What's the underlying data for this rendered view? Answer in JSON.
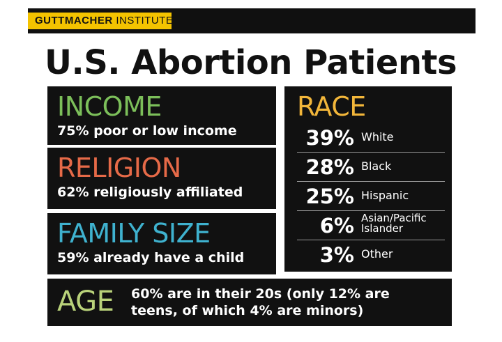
{
  "header": {
    "brand_bold": "GUTTMACHER",
    "brand_light": "INSTITUTE",
    "brand_color": "#f4c300"
  },
  "title": "U.S. Abortion Patients",
  "income": {
    "title": "INCOME",
    "desc": "75% poor or low income",
    "color": "#7cbf5a"
  },
  "religion": {
    "title": "RELIGION",
    "desc": "62% religiously affiliated",
    "color": "#e66a48"
  },
  "family": {
    "title": "FAMILY SIZE",
    "desc": "59% already have a child",
    "color": "#3fb2cf"
  },
  "race": {
    "title": "RACE",
    "color": "#f2b63a",
    "rows": [
      {
        "value": "39%",
        "label": "White"
      },
      {
        "value": "28%",
        "label": "Black"
      },
      {
        "value": "25%",
        "label": "Hispanic"
      },
      {
        "value": "6%",
        "label": "Asian/Pacific\nIslander"
      },
      {
        "value": "3%",
        "label": "Other"
      }
    ]
  },
  "age": {
    "title": "AGE",
    "desc": "60% are in their 20s (only 12% are\nteens, of which 4% are minors)",
    "color": "#b9d27a"
  }
}
